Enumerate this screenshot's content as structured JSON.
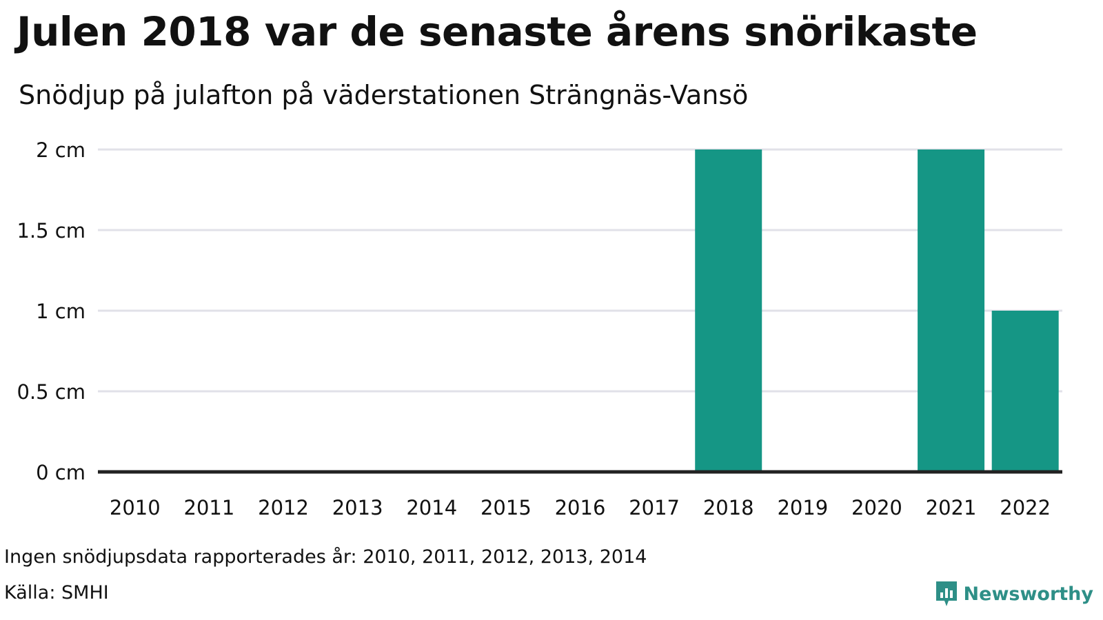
{
  "colors": {
    "bar": "#159685",
    "grid": "#e1e1e8",
    "baseline": "#222222",
    "text": "#111111",
    "brand": "#2e8f87"
  },
  "chart_data": {
    "type": "bar",
    "title": "Julen 2018 var de senaste årens snörikaste",
    "subtitle": "Snödjup på julafton på väderstationen Strängnäs-Vansö",
    "categories": [
      "2010",
      "2011",
      "2012",
      "2013",
      "2014",
      "2015",
      "2016",
      "2017",
      "2018",
      "2019",
      "2020",
      "2021",
      "2022"
    ],
    "values": [
      0,
      0,
      0,
      0,
      0,
      0,
      0,
      0,
      2,
      0,
      0,
      2,
      1
    ],
    "ylim": [
      0,
      2
    ],
    "yticks": [
      0,
      0.5,
      1,
      1.5,
      2
    ],
    "ytick_labels": [
      "0 cm",
      "0.5 cm",
      "1 cm",
      "1.5 cm",
      "2 cm"
    ],
    "grid": true,
    "legend": "none"
  },
  "footer": {
    "note": "Ingen snödjupsdata rapporterades år: 2010, 2011, 2012, 2013, 2014",
    "source": "Källa: SMHI",
    "brand": "Newsworthy",
    "brand_icon": "newsworthy-logo-icon"
  }
}
